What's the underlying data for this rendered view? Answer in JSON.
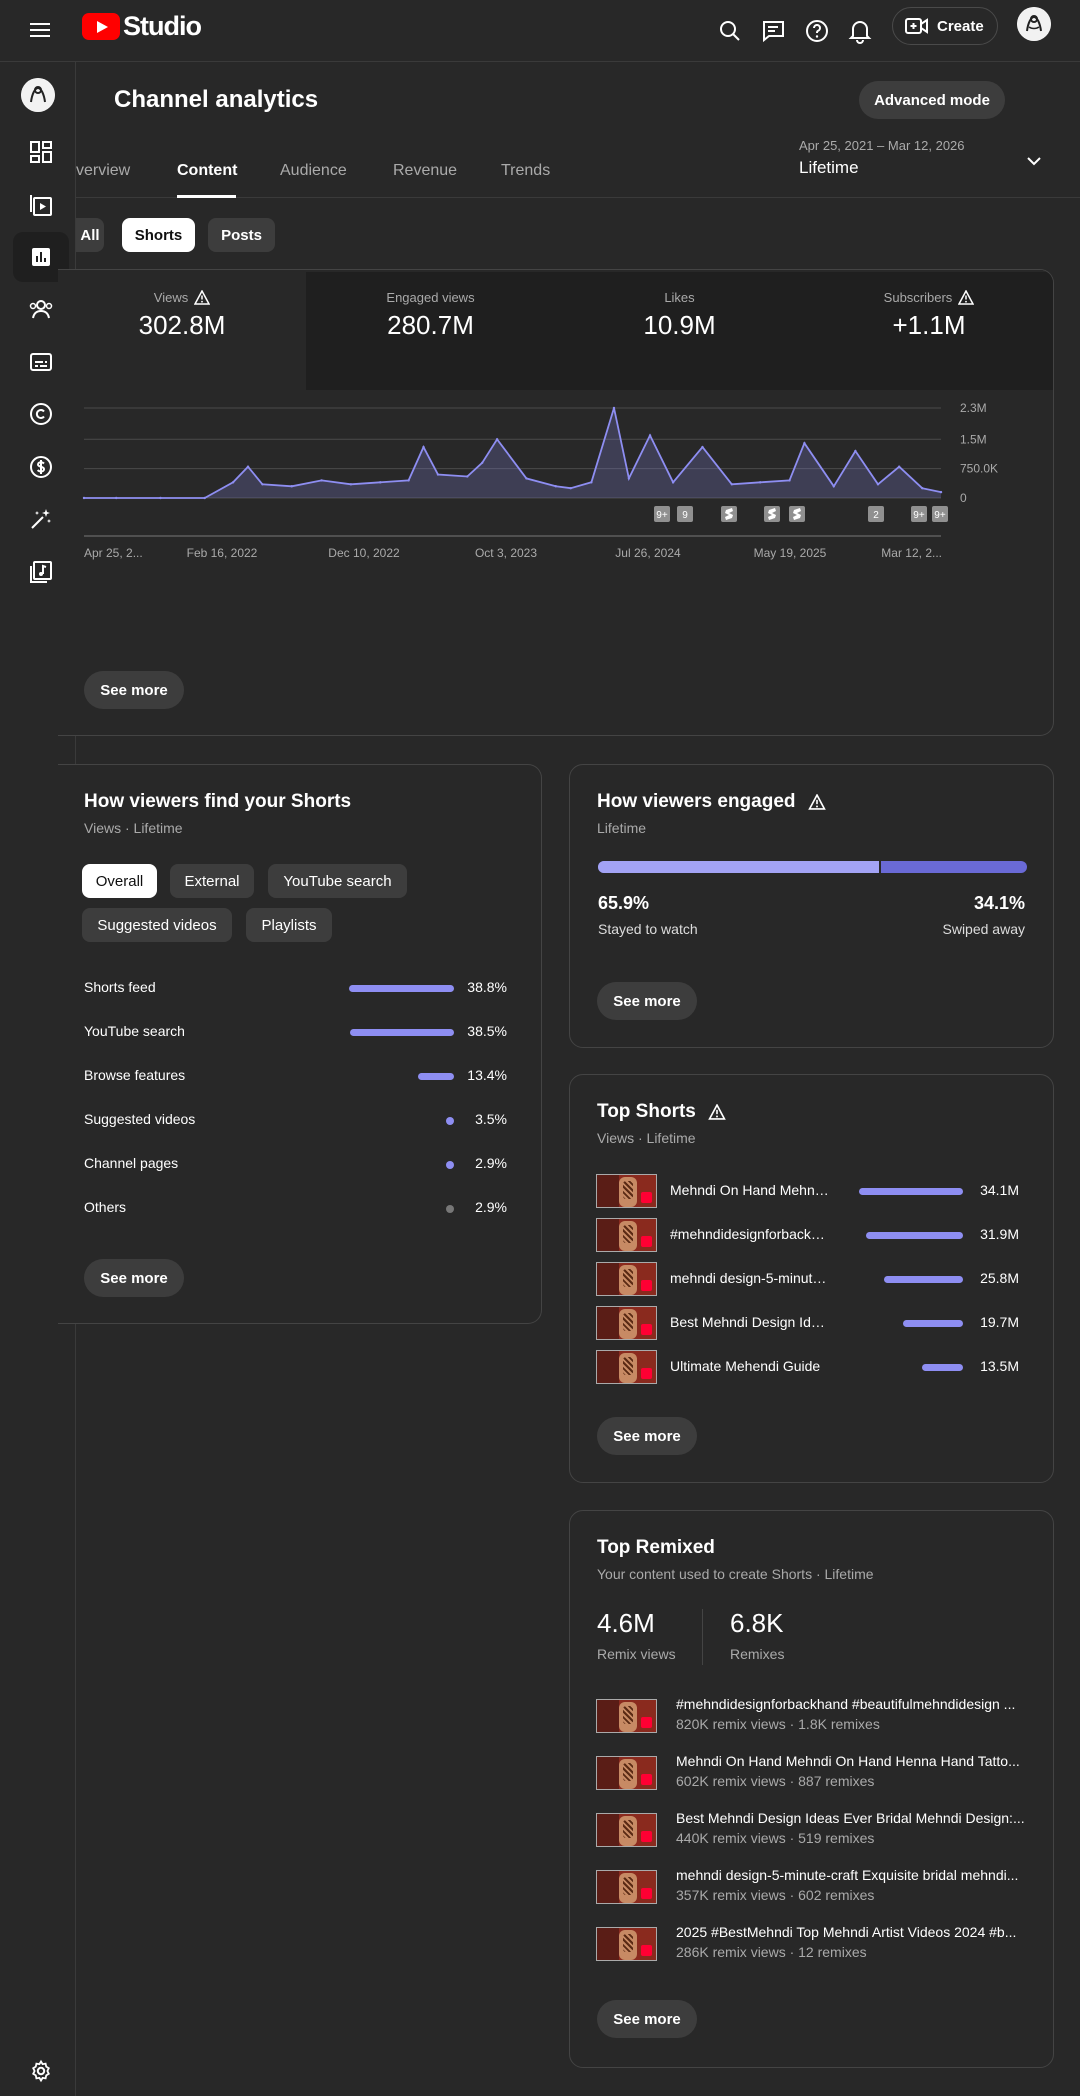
{
  "app": {
    "logo_text": "Studio"
  },
  "topbar": {
    "create_label": "Create"
  },
  "header": {
    "title": "Channel analytics",
    "advanced_mode": "Advanced mode",
    "date_range": "Apr 25, 2021 – Mar 12, 2026",
    "date_label": "Lifetime"
  },
  "tabs": [
    "verview",
    "Content",
    "Audience",
    "Revenue",
    "Trends"
  ],
  "chips": [
    "All",
    "Shorts",
    "Posts"
  ],
  "metrics": [
    {
      "label": "Views",
      "value": "302.8M",
      "warning": true
    },
    {
      "label": "Engaged views",
      "value": "280.7M",
      "warning": false
    },
    {
      "label": "Likes",
      "value": "10.9M",
      "warning": false
    },
    {
      "label": "Subscribers",
      "value": "+1.1M",
      "warning": true
    }
  ],
  "chart_data": {
    "type": "line",
    "y_tick_labels": [
      "2.3M",
      "1.5M",
      "750.0K",
      "0"
    ],
    "y_ticks": [
      2300000,
      1500000,
      750000,
      0
    ],
    "ylim": [
      0,
      2300000
    ],
    "x_tick_labels": [
      "Apr 25, 2...",
      "Feb 16, 2022",
      "Dec 10, 2022",
      "Oct 3, 2023",
      "Jul 26, 2024",
      "May 19, 2025",
      "Mar 12, 2..."
    ],
    "x": [
      "2021-04-25",
      "2021-07-01",
      "2021-10-01",
      "2022-01-01",
      "2022-03-01",
      "2022-04-01",
      "2022-05-01",
      "2022-07-01",
      "2022-09-01",
      "2022-11-01",
      "2023-01-01",
      "2023-03-01",
      "2023-04-01",
      "2023-05-01",
      "2023-07-01",
      "2023-08-01",
      "2023-09-01",
      "2023-11-01",
      "2024-01-01",
      "2024-02-01",
      "2024-03-15",
      "2024-05-01",
      "2024-06-01",
      "2024-07-15",
      "2024-09-01",
      "2024-11-01",
      "2025-01-01",
      "2025-03-01",
      "2025-05-01",
      "2025-06-01",
      "2025-08-01",
      "2025-09-15",
      "2025-11-01",
      "2025-12-15",
      "2026-02-01",
      "2026-03-12"
    ],
    "values": [
      0,
      0,
      0,
      0,
      400000,
      800000,
      350000,
      300000,
      450000,
      350000,
      400000,
      450000,
      1300000,
      600000,
      550000,
      900000,
      1500000,
      500000,
      300000,
      250000,
      400000,
      2300000,
      500000,
      1600000,
      400000,
      1300000,
      350000,
      400000,
      450000,
      1400000,
      300000,
      1200000,
      350000,
      800000,
      250000,
      150000
    ],
    "annotations": [
      "9+",
      "9",
      "shorts",
      "shorts",
      "shorts",
      "2",
      "9+",
      "9+"
    ]
  },
  "chart_see_more": "See more",
  "traffic": {
    "title": "How viewers find your Shorts",
    "subtitle": "Views · Lifetime",
    "chips": [
      "Overall",
      "External",
      "YouTube search",
      "Suggested videos",
      "Playlists"
    ],
    "rows": [
      {
        "label": "Shorts feed",
        "pct": "38.8%",
        "value": 38.8
      },
      {
        "label": "YouTube search",
        "pct": "38.5%",
        "value": 38.5
      },
      {
        "label": "Browse features",
        "pct": "13.4%",
        "value": 13.4
      },
      {
        "label": "Suggested videos",
        "pct": "3.5%",
        "value": 3.5
      },
      {
        "label": "Channel pages",
        "pct": "2.9%",
        "value": 2.9
      },
      {
        "label": "Others",
        "pct": "2.9%",
        "value": 2.9
      }
    ],
    "see_more": "See more"
  },
  "engaged": {
    "title": "How viewers engaged",
    "subtitle": "Lifetime",
    "stayed_pct": "65.9%",
    "stayed_label": "Stayed to watch",
    "swiped_pct": "34.1%",
    "swiped_label": "Swiped away",
    "stayed_value": 65.9,
    "see_more": "See more"
  },
  "top_shorts": {
    "title": "Top Shorts",
    "subtitle": "Views · Lifetime",
    "rows": [
      {
        "title": "Mehndi On Hand Mehndi On Hand",
        "views": "34.1M",
        "value": 34.1
      },
      {
        "title": "#mehndidesignforbackhand",
        "views": "31.9M",
        "value": 31.9
      },
      {
        "title": "mehndi design-5-minute-craft",
        "views": "25.8M",
        "value": 25.8
      },
      {
        "title": "Best Mehndi Design Ideas",
        "views": "19.7M",
        "value": 19.7
      },
      {
        "title": "Ultimate Mehendi Guide",
        "views": "13.5M",
        "value": 13.5
      }
    ],
    "see_more": "See more"
  },
  "top_remixed": {
    "title": "Top Remixed",
    "subtitle": "Your content used to create Shorts · Lifetime",
    "remix_views": "4.6M",
    "remix_views_label": "Remix views",
    "remixes": "6.8K",
    "remixes_label": "Remixes",
    "rows": [
      {
        "title": "#mehndidesignforbackhand #beautifulmehndidesign ...",
        "meta": "820K remix views · 1.8K remixes"
      },
      {
        "title": "Mehndi On Hand Mehndi On Hand Henna Hand Tatto...",
        "meta": "602K remix views · 887 remixes"
      },
      {
        "title": "Best Mehndi Design Ideas Ever Bridal Mehndi Design:...",
        "meta": "440K remix views · 519 remixes"
      },
      {
        "title": "mehndi design-5-minute-craft Exquisite bridal mehndi...",
        "meta": "357K remix views · 602 remixes"
      },
      {
        "title": "2025 #BestMehndi Top Mehndi Artist Videos 2024 #b...",
        "meta": "286K remix views · 12 remixes"
      }
    ],
    "see_more": "See more"
  },
  "colors": {
    "accent": "#8e8ef2",
    "accent_dark": "#6a6ad6",
    "background": "#282828",
    "card_dark": "#1f1f1f"
  }
}
